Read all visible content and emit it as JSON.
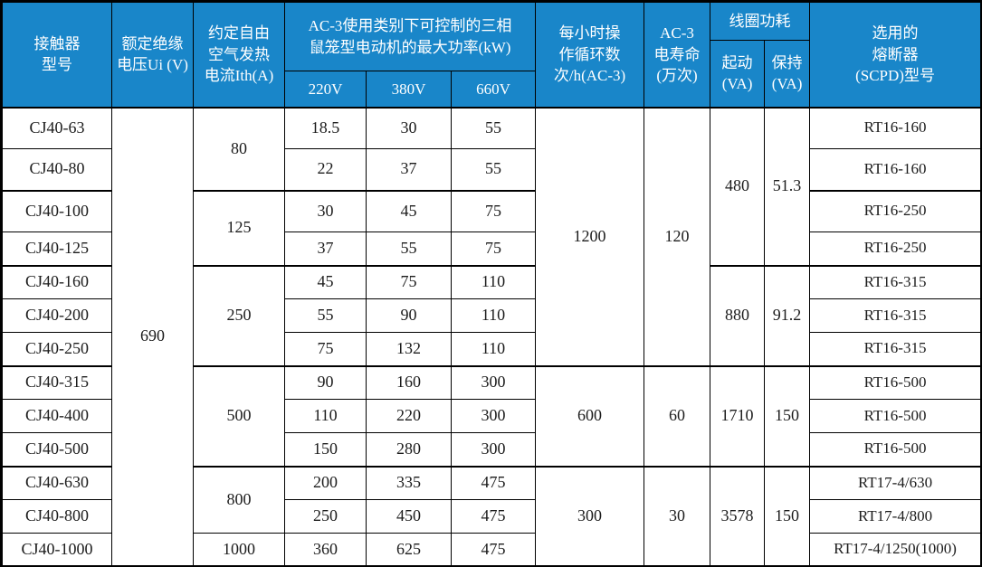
{
  "colors": {
    "header_bg": "#1986c9",
    "header_text": "#ffffff",
    "border": "#000000",
    "body_text": "#1c1c1c"
  },
  "header": {
    "model": "接触器\n型号",
    "ui": "额定绝缘\n电压Ui (V)",
    "ith": "约定自由\n空气发热\n电流Ith(A)",
    "power_group": "AC-3使用类别下可控制的三相\n鼠笼型电动机的最大功率(kW)",
    "v220": "220V",
    "v380": "380V",
    "v660": "660V",
    "cycles": "每小时操\n作循环数\n次/h(AC-3)",
    "life": "AC-3\n电寿命\n(万次)",
    "coil_group": "线圈功耗",
    "start": "起动\n(VA)",
    "hold": "保持\n(VA)",
    "fuse": "选用的\n熔断器\n(SCPD)型号"
  },
  "body": {
    "rows": [
      {
        "model": "CJ40-63",
        "ui": "690",
        "ith": "80",
        "p220": "18.5",
        "p380": "30",
        "p660": "55",
        "cycles": "1200",
        "life": "120",
        "start_va": "480",
        "hold_va": "51.3",
        "fuse": "RT16-160"
      },
      {
        "model": "CJ40-80",
        "ui": null,
        "ith": null,
        "p220": "22",
        "p380": "37",
        "p660": "55",
        "cycles": null,
        "life": null,
        "start_va": null,
        "hold_va": null,
        "fuse": "RT16-160"
      },
      {
        "model": "CJ40-100",
        "ui": null,
        "ith": "125",
        "p220": "30",
        "p380": "45",
        "p660": "75",
        "cycles": null,
        "life": null,
        "start_va": null,
        "hold_va": null,
        "fuse": "RT16-250"
      },
      {
        "model": "CJ40-125",
        "ui": null,
        "ith": null,
        "p220": "37",
        "p380": "55",
        "p660": "75",
        "cycles": null,
        "life": null,
        "start_va": null,
        "hold_va": null,
        "fuse": "RT16-250"
      },
      {
        "model": "CJ40-160",
        "ui": null,
        "ith": "250",
        "p220": "45",
        "p380": "75",
        "p660": "110",
        "cycles": null,
        "life": null,
        "start_va": "880",
        "hold_va": "91.2",
        "fuse": "RT16-315"
      },
      {
        "model": "CJ40-200",
        "ui": null,
        "ith": null,
        "p220": "55",
        "p380": "90",
        "p660": "110",
        "cycles": null,
        "life": null,
        "start_va": null,
        "hold_va": null,
        "fuse": "RT16-315"
      },
      {
        "model": "CJ40-250",
        "ui": null,
        "ith": null,
        "p220": "75",
        "p380": "132",
        "p660": "110",
        "cycles": null,
        "life": null,
        "start_va": null,
        "hold_va": null,
        "fuse": "RT16-315"
      },
      {
        "model": "CJ40-315",
        "ui": null,
        "ith": "500",
        "p220": "90",
        "p380": "160",
        "p660": "300",
        "cycles": "600",
        "life": "60",
        "start_va": "1710",
        "hold_va": "150",
        "fuse": "RT16-500"
      },
      {
        "model": "CJ40-400",
        "ui": null,
        "ith": null,
        "p220": "110",
        "p380": "220",
        "p660": "300",
        "cycles": null,
        "life": null,
        "start_va": null,
        "hold_va": null,
        "fuse": "RT16-500"
      },
      {
        "model": "CJ40-500",
        "ui": null,
        "ith": null,
        "p220": "150",
        "p380": "280",
        "p660": "300",
        "cycles": null,
        "life": null,
        "start_va": null,
        "hold_va": null,
        "fuse": "RT16-500"
      },
      {
        "model": "CJ40-630",
        "ui": null,
        "ith": "800",
        "p220": "200",
        "p380": "335",
        "p660": "475",
        "cycles": "300",
        "life": "30",
        "start_va": "3578",
        "hold_va": "150",
        "fuse": "RT17-4/630"
      },
      {
        "model": "CJ40-800",
        "ui": null,
        "ith": null,
        "p220": "250",
        "p380": "450",
        "p660": "475",
        "cycles": null,
        "life": null,
        "start_va": null,
        "hold_va": null,
        "fuse": "RT17-4/800"
      },
      {
        "model": "CJ40-1000",
        "ui": null,
        "ith": "1000",
        "p220": "360",
        "p380": "625",
        "p660": "475",
        "cycles": null,
        "life": null,
        "start_va": null,
        "hold_va": null,
        "fuse": "RT17-4/1250(1000)"
      }
    ]
  }
}
